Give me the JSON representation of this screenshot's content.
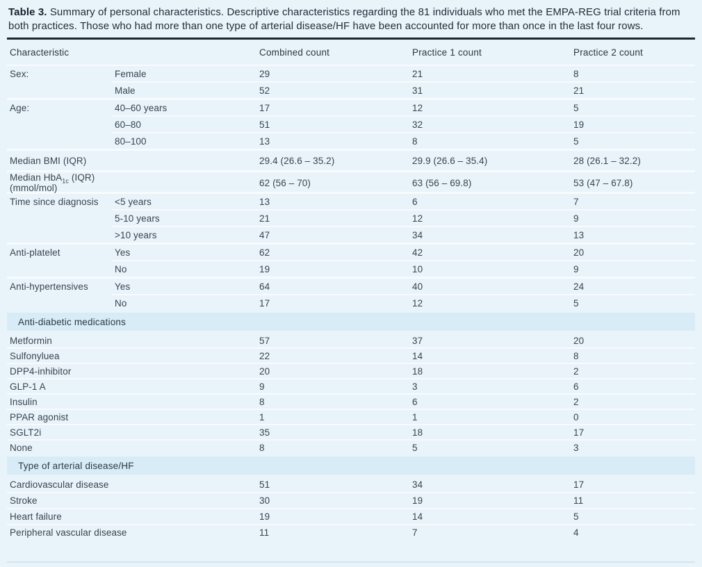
{
  "caption": {
    "label": "Table 3.",
    "text": "Summary of personal characteristics. Descriptive characteristics regarding the 81 individuals who met the EMPA-REG trial criteria from both practices. Those who had more than one type of arterial disease/HF have been accounted for more than once in the last four rows."
  },
  "table": {
    "columns": [
      "Characteristic",
      "Combined count",
      "Practice 1 count",
      "Practice 2 count"
    ],
    "groups": [
      {
        "type": "rows",
        "rows": [
          {
            "c1": "Sex:",
            "c2": "Female",
            "v": [
              "29",
              "21",
              "8"
            ]
          },
          {
            "c1": "",
            "c2": "Male",
            "v": [
              "52",
              "31",
              "21"
            ]
          }
        ]
      },
      {
        "type": "rows",
        "rows": [
          {
            "c1": "Age:",
            "c2": "40–60 years",
            "v": [
              "17",
              "12",
              "5"
            ]
          },
          {
            "c1": "",
            "c2": "60–80",
            "v": [
              "51",
              "32",
              "19"
            ]
          },
          {
            "c1": "",
            "c2": "80–100",
            "v": [
              "13",
              "8",
              "5"
            ]
          }
        ]
      },
      {
        "type": "rows",
        "tall": true,
        "rows": [
          {
            "c1": "Median BMI (IQR)",
            "c2": "",
            "v": [
              "29.4 (26.6 – 35.2)",
              "29.9 (26.6 – 35.4)",
              "28 (26.1 – 32.2)"
            ]
          }
        ]
      },
      {
        "type": "rows",
        "tall": true,
        "rows": [
          {
            "c1_parts": {
              "pre": "Median HbA",
              "sub": "1c",
              "post": " (IQR) (mmol/mol)"
            },
            "c2": "",
            "v": [
              "62 (56 – 70)",
              "63 (56 – 69.8)",
              "53 (47 – 67.8)"
            ]
          }
        ]
      },
      {
        "type": "rows",
        "rows": [
          {
            "c1": "Time since diagnosis",
            "c2": "<5 years",
            "v": [
              "13",
              "6",
              "7"
            ]
          },
          {
            "c1": "",
            "c2": "5-10 years",
            "v": [
              "21",
              "12",
              "9"
            ]
          },
          {
            "c1": "",
            "c2": ">10 years",
            "v": [
              "47",
              "34",
              "13"
            ]
          }
        ]
      },
      {
        "type": "rows",
        "rows": [
          {
            "c1": "Anti-platelet",
            "c2": "Yes",
            "v": [
              "62",
              "42",
              "20"
            ]
          },
          {
            "c1": "",
            "c2": "No",
            "v": [
              "19",
              "10",
              "9"
            ]
          }
        ]
      },
      {
        "type": "rows",
        "rows": [
          {
            "c1": "Anti-hypertensives",
            "c2": "Yes",
            "v": [
              "64",
              "40",
              "24"
            ]
          },
          {
            "c1": "",
            "c2": "No",
            "v": [
              "17",
              "12",
              "5"
            ]
          }
        ]
      },
      {
        "type": "section",
        "label": "Anti-diabetic medications"
      },
      {
        "type": "rows",
        "wide": true,
        "rows": [
          {
            "c1": "Metformin",
            "v": [
              "57",
              "37",
              "20"
            ]
          },
          {
            "c1": "Sulfonyluea",
            "v": [
              "22",
              "14",
              "8"
            ]
          },
          {
            "c1": "DPP4-inhibitor",
            "v": [
              "20",
              "18",
              "2"
            ]
          },
          {
            "c1": "GLP-1 A",
            "v": [
              "9",
              "3",
              "6"
            ]
          },
          {
            "c1": "Insulin",
            "v": [
              "8",
              "6",
              "2"
            ]
          },
          {
            "c1": "PPAR agonist",
            "v": [
              "1",
              "1",
              "0"
            ]
          },
          {
            "c1": "SGLT2i",
            "v": [
              "35",
              "18",
              "17"
            ]
          },
          {
            "c1": "None",
            "v": [
              "8",
              "5",
              "3"
            ]
          }
        ]
      },
      {
        "type": "section",
        "label": "Type of arterial disease/HF"
      },
      {
        "type": "rows",
        "wide": true,
        "rows": [
          {
            "c1": "Cardiovascular disease",
            "v": [
              "51",
              "34",
              "17"
            ]
          },
          {
            "c1": "Stroke",
            "v": [
              "30",
              "19",
              "11"
            ]
          },
          {
            "c1": "Heart failure",
            "v": [
              "19",
              "14",
              "5"
            ]
          },
          {
            "c1": "Peripheral vascular disease",
            "v": [
              "11",
              "7",
              "4"
            ]
          }
        ]
      }
    ]
  }
}
